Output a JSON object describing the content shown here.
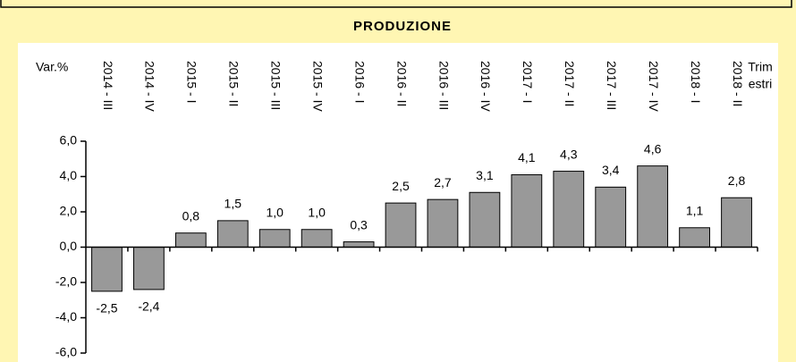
{
  "chart_data": {
    "type": "bar",
    "title": "PRODUZIONE",
    "y_label": "Var.%",
    "x_label_lines": [
      "Trim",
      "estri"
    ],
    "categories": [
      "2014 - III",
      "2014 - IV",
      "2015 - I",
      "2015 - II",
      "2015 - III",
      "2015 - IV",
      "2016 - I",
      "2016 - II",
      "2016 - III",
      "2016 - IV",
      "2017 - I",
      "2017 - II",
      "2017 - III",
      "2017 - IV",
      "2018 - I",
      "2018 - II"
    ],
    "values": [
      -2.5,
      -2.4,
      0.8,
      1.5,
      1.0,
      1.0,
      0.3,
      2.5,
      2.7,
      3.1,
      4.1,
      4.3,
      3.4,
      4.6,
      1.1,
      2.8
    ],
    "value_labels": [
      "-2,5",
      "-2,4",
      "0,8",
      "1,5",
      "1,0",
      "1,0",
      "0,3",
      "2,5",
      "2,7",
      "3,1",
      "4,1",
      "4,3",
      "3,4",
      "4,6",
      "1,1",
      "2,8"
    ],
    "color": "#999999",
    "ylim": [
      -6,
      6
    ],
    "yticks": [
      {
        "value": -6,
        "label": "-6,0"
      },
      {
        "value": -4,
        "label": "-4,0"
      },
      {
        "value": -2,
        "label": "-2,0"
      },
      {
        "value": 0,
        "label": "0,0"
      },
      {
        "value": 2,
        "label": "2,0"
      },
      {
        "value": 4,
        "label": "4,0"
      },
      {
        "value": 6,
        "label": "6,0"
      }
    ]
  }
}
